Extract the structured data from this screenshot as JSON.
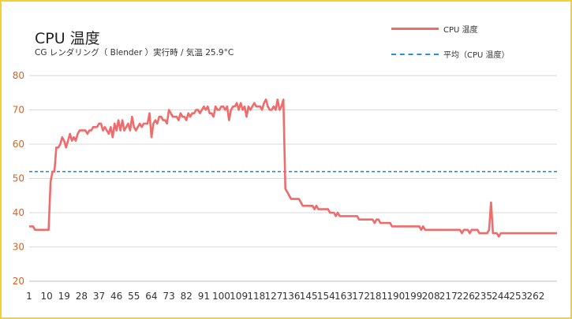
{
  "chart_data": {
    "type": "line",
    "title": "CPU 温度",
    "subtitle": "CG レンダリング（ Blender ）実行時 / 気温 25.9°C",
    "ylim": [
      20,
      80
    ],
    "yticks": [
      20,
      30,
      40,
      50,
      60,
      70,
      80
    ],
    "xticks": [
      "1",
      "10",
      "19",
      "28",
      "37",
      "46",
      "55",
      "64",
      "73",
      "82",
      "91",
      "100",
      "109",
      "118",
      "127",
      "136",
      "145",
      "154",
      "163",
      "172",
      "181",
      "190",
      "199",
      "208",
      "217",
      "226",
      "235",
      "244",
      "253",
      "262"
    ],
    "grid": "horizontal",
    "legend_position": "top-right",
    "x_count": 273,
    "series": [
      {
        "name": "CPU 温度",
        "color": "#f06b6b",
        "style": "solid",
        "keyframes": [
          [
            1,
            36
          ],
          [
            3,
            36
          ],
          [
            4,
            35
          ],
          [
            11,
            35
          ],
          [
            12,
            49
          ],
          [
            13,
            52
          ],
          [
            15,
            59
          ],
          [
            16,
            59
          ],
          [
            17,
            60
          ],
          [
            18,
            62
          ],
          [
            19,
            61
          ],
          [
            20,
            59
          ],
          [
            21,
            61
          ],
          [
            22,
            63
          ],
          [
            23,
            61
          ],
          [
            24,
            62
          ],
          [
            25,
            61
          ],
          [
            26,
            63
          ],
          [
            27,
            64
          ],
          [
            30,
            64
          ],
          [
            31,
            63
          ],
          [
            32,
            64
          ],
          [
            34,
            65
          ],
          [
            36,
            65
          ],
          [
            37,
            66
          ],
          [
            38,
            66
          ],
          [
            39,
            64
          ],
          [
            40,
            65
          ],
          [
            41,
            64
          ],
          [
            42,
            63
          ],
          [
            43,
            65
          ],
          [
            44,
            62
          ],
          [
            45,
            66
          ],
          [
            46,
            64
          ],
          [
            47,
            67
          ],
          [
            48,
            64
          ],
          [
            49,
            67
          ],
          [
            50,
            64
          ],
          [
            51,
            65
          ],
          [
            52,
            66
          ],
          [
            53,
            64
          ],
          [
            54,
            68
          ],
          [
            55,
            65
          ],
          [
            56,
            64
          ],
          [
            57,
            65
          ],
          [
            58,
            66
          ],
          [
            59,
            65
          ],
          [
            60,
            66
          ],
          [
            62,
            66
          ],
          [
            63,
            69
          ],
          [
            64,
            62
          ],
          [
            65,
            66
          ],
          [
            66,
            67
          ],
          [
            67,
            66
          ],
          [
            68,
            68
          ],
          [
            70,
            67
          ],
          [
            72,
            66
          ],
          [
            73,
            70
          ],
          [
            74,
            69
          ],
          [
            75,
            68
          ],
          [
            77,
            68
          ],
          [
            78,
            67
          ],
          [
            79,
            69
          ],
          [
            80,
            68
          ],
          [
            81,
            68
          ],
          [
            82,
            67
          ],
          [
            83,
            69
          ],
          [
            84,
            68
          ],
          [
            85,
            69
          ],
          [
            86,
            69
          ],
          [
            87,
            70
          ],
          [
            89,
            69
          ],
          [
            90,
            70
          ],
          [
            91,
            71
          ],
          [
            92,
            70
          ],
          [
            93,
            71
          ],
          [
            94,
            69
          ],
          [
            95,
            69
          ],
          [
            96,
            68
          ],
          [
            97,
            71
          ],
          [
            98,
            70
          ],
          [
            99,
            70
          ],
          [
            100,
            71
          ],
          [
            101,
            71
          ],
          [
            102,
            70
          ],
          [
            103,
            71
          ],
          [
            104,
            67
          ],
          [
            105,
            70
          ],
          [
            106,
            71
          ],
          [
            107,
            71
          ],
          [
            108,
            72
          ],
          [
            109,
            70
          ],
          [
            110,
            72
          ],
          [
            111,
            70
          ],
          [
            112,
            71
          ],
          [
            113,
            68
          ],
          [
            114,
            71
          ],
          [
            115,
            70
          ],
          [
            116,
            71
          ],
          [
            117,
            72
          ],
          [
            118,
            71
          ],
          [
            120,
            71
          ],
          [
            121,
            70
          ],
          [
            122,
            72
          ],
          [
            123,
            73
          ],
          [
            124,
            71
          ],
          [
            125,
            70
          ],
          [
            126,
            70
          ],
          [
            127,
            71
          ],
          [
            128,
            70
          ],
          [
            129,
            73
          ],
          [
            130,
            70
          ],
          [
            131,
            71
          ],
          [
            132,
            73
          ],
          [
            133,
            47
          ],
          [
            134,
            46
          ],
          [
            135,
            45
          ],
          [
            136,
            44
          ],
          [
            140,
            44
          ],
          [
            141,
            43
          ],
          [
            142,
            42
          ],
          [
            147,
            42
          ],
          [
            148,
            41
          ],
          [
            149,
            42
          ],
          [
            150,
            41
          ],
          [
            155,
            41
          ],
          [
            156,
            40
          ],
          [
            158,
            40
          ],
          [
            159,
            39
          ],
          [
            160,
            40
          ],
          [
            161,
            39
          ],
          [
            170,
            39
          ],
          [
            171,
            38
          ],
          [
            178,
            38
          ],
          [
            179,
            37
          ],
          [
            180,
            38
          ],
          [
            181,
            38
          ],
          [
            182,
            37
          ],
          [
            187,
            37
          ],
          [
            188,
            36
          ],
          [
            202,
            36
          ],
          [
            203,
            35
          ],
          [
            204,
            36
          ],
          [
            205,
            35
          ],
          [
            223,
            35
          ],
          [
            224,
            34
          ],
          [
            225,
            35
          ],
          [
            227,
            35
          ],
          [
            228,
            34
          ],
          [
            229,
            35
          ],
          [
            232,
            35
          ],
          [
            233,
            34
          ],
          [
            237,
            34
          ],
          [
            238,
            35
          ],
          [
            239,
            43
          ],
          [
            240,
            34
          ],
          [
            242,
            34
          ],
          [
            243,
            33
          ],
          [
            244,
            34
          ],
          [
            247,
            34
          ]
        ]
      },
      {
        "name": "平均（CPU 温度）",
        "color": "#2b8fe0",
        "style": "dashed",
        "value": 52
      }
    ]
  }
}
